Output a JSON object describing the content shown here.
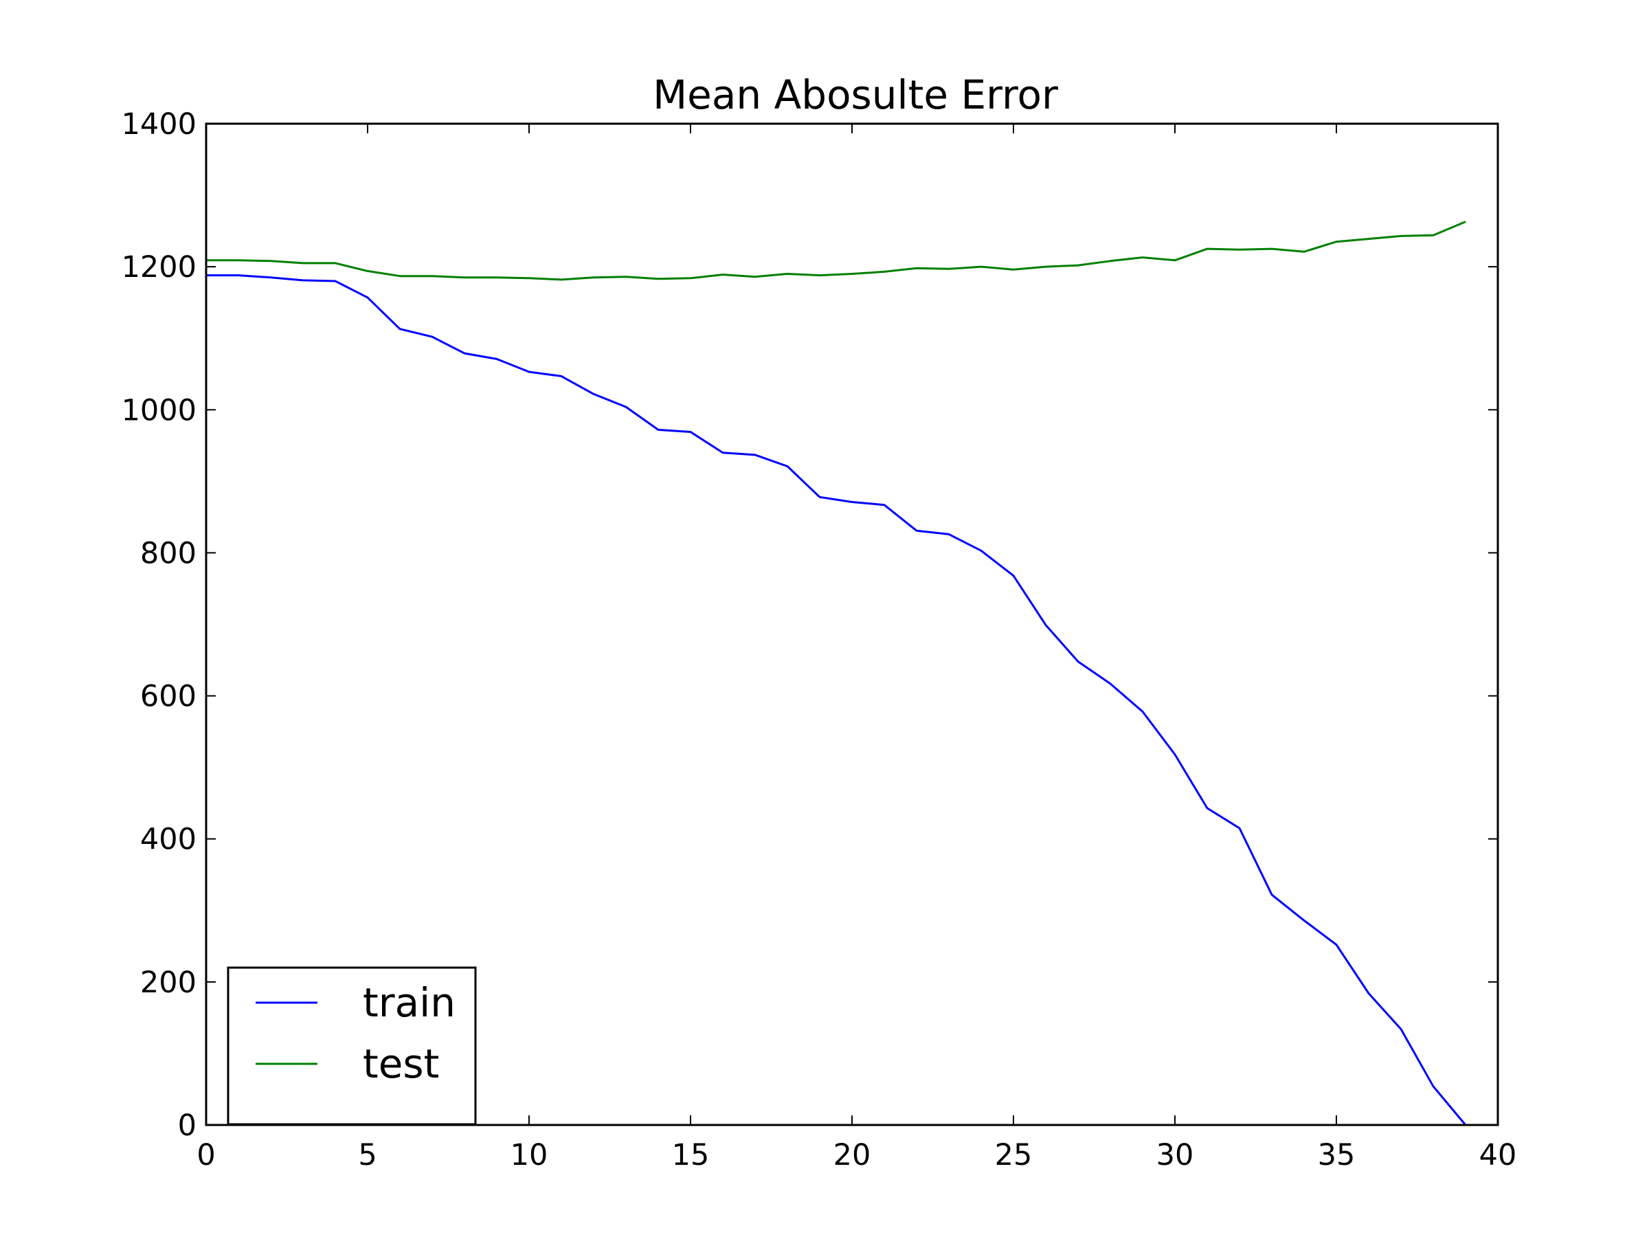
{
  "chart_data": {
    "type": "line",
    "title": "Mean Abosulte Error",
    "xlabel": "",
    "ylabel": "",
    "xlim": [
      0,
      40
    ],
    "ylim": [
      0,
      1400
    ],
    "xticks": [
      0,
      5,
      10,
      15,
      20,
      25,
      30,
      35,
      40
    ],
    "yticks": [
      0,
      200,
      400,
      600,
      800,
      1000,
      1200,
      1400
    ],
    "grid": false,
    "legend": "lower-left",
    "x": [
      0,
      1,
      2,
      3,
      4,
      5,
      6,
      7,
      8,
      9,
      10,
      11,
      12,
      13,
      14,
      15,
      16,
      17,
      18,
      19,
      20,
      21,
      22,
      23,
      24,
      25,
      26,
      27,
      28,
      29,
      30,
      31,
      32,
      33,
      34,
      35,
      36,
      37,
      38,
      39
    ],
    "series": [
      {
        "name": "train",
        "color": "#0000ff",
        "values": [
          1188,
          1188,
          1185,
          1181,
          1180,
          1157,
          1113,
          1102,
          1079,
          1071,
          1053,
          1047,
          1022,
          1004,
          972,
          969,
          940,
          937,
          921,
          878,
          871,
          867,
          831,
          826,
          803,
          768,
          699,
          648,
          617,
          578,
          518,
          443,
          415,
          322,
          286,
          252,
          184,
          134,
          54,
          0
        ]
      },
      {
        "name": "test",
        "color": "#008000",
        "values": [
          1209,
          1209,
          1208,
          1205,
          1205,
          1194,
          1187,
          1187,
          1185,
          1185,
          1184,
          1182,
          1185,
          1186,
          1183,
          1184,
          1189,
          1186,
          1190,
          1188,
          1190,
          1193,
          1198,
          1197,
          1200,
          1196,
          1200,
          1202,
          1208,
          1213,
          1209,
          1225,
          1224,
          1225,
          1221,
          1235,
          1239,
          1243,
          1244,
          1263
        ]
      }
    ]
  }
}
